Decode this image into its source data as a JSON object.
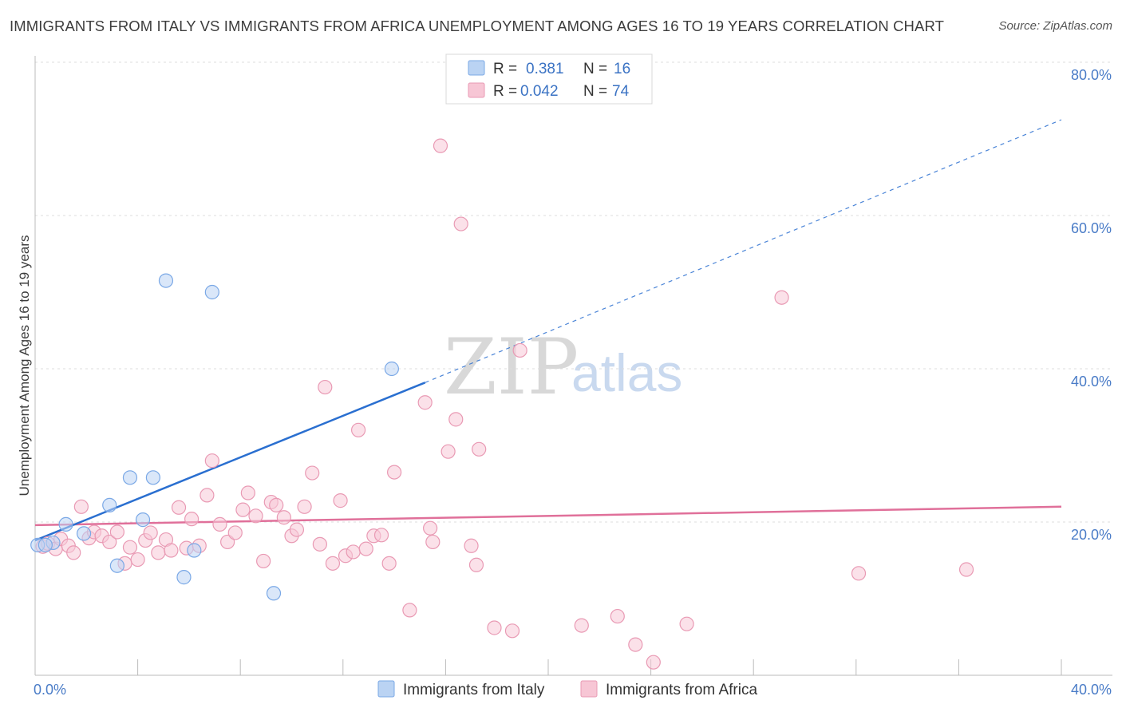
{
  "header": {
    "title": "IMMIGRANTS FROM ITALY VS IMMIGRANTS FROM AFRICA UNEMPLOYMENT AMONG AGES 16 TO 19 YEARS CORRELATION CHART",
    "source": "Source: ZipAtlas.com"
  },
  "watermark": {
    "zip": "ZIP",
    "atlas": "atlas"
  },
  "legend": {
    "rows": [
      {
        "r_label": "R =",
        "r_value": "0.381",
        "n_label": "N =",
        "n_value": "16",
        "color": "#a9c8f0"
      },
      {
        "r_label": "R =",
        "r_value": "0.042",
        "n_label": "N =",
        "n_value": "74",
        "color": "#f5b8cb"
      }
    ]
  },
  "chart_data": {
    "type": "scatter",
    "title": "IMMIGRANTS FROM ITALY VS IMMIGRANTS FROM AFRICA UNEMPLOYMENT AMONG AGES 16 TO 19 YEARS CORRELATION CHART",
    "xlabel": "",
    "ylabel": "Unemployment Among Ages 16 to 19 years",
    "xlim": [
      0,
      40
    ],
    "ylim": [
      0,
      80
    ],
    "x_tick_labels": [
      "0.0%",
      "40.0%"
    ],
    "y_ticks": [
      20,
      40,
      60,
      80
    ],
    "y_tick_labels": [
      "20.0%",
      "40.0%",
      "60.0%",
      "80.0%"
    ],
    "grid": true,
    "legend_position": "top-center",
    "series": [
      {
        "name": "Immigrants from Italy",
        "color": "#7aa8e6",
        "fill": "#bcd4f4",
        "line_color": "#2a6fd0",
        "trend": {
          "x_start": 0,
          "y_start": 17.6,
          "x_solid_end": 15.2,
          "y_solid_end": 38.2,
          "x_dash_end": 40,
          "y_dash_end": 72.5
        },
        "points": [
          [
            0.1,
            17.0
          ],
          [
            0.7,
            17.3
          ],
          [
            1.2,
            19.7
          ],
          [
            1.9,
            18.5
          ],
          [
            2.9,
            22.2
          ],
          [
            3.2,
            14.3
          ],
          [
            3.7,
            25.8
          ],
          [
            4.2,
            20.3
          ],
          [
            4.6,
            25.8
          ],
          [
            5.1,
            51.5
          ],
          [
            5.8,
            12.8
          ],
          [
            6.2,
            16.3
          ],
          [
            6.9,
            50.0
          ],
          [
            9.3,
            10.7
          ],
          [
            13.9,
            40.0
          ],
          [
            0.4,
            17.0
          ]
        ]
      },
      {
        "name": "Immigrants from Africa",
        "color": "#e99ab4",
        "fill": "#f7c9d7",
        "line_color": "#e0709a",
        "trend": {
          "x_start": 0,
          "y_start": 19.6,
          "x_end": 40,
          "y_end": 22.0
        },
        "points": [
          [
            0.3,
            16.8
          ],
          [
            0.5,
            17.2
          ],
          [
            0.8,
            16.5
          ],
          [
            1.0,
            17.8
          ],
          [
            1.3,
            16.9
          ],
          [
            1.5,
            16.0
          ],
          [
            1.8,
            22.0
          ],
          [
            2.1,
            17.9
          ],
          [
            2.3,
            18.7
          ],
          [
            2.6,
            18.2
          ],
          [
            2.9,
            17.4
          ],
          [
            3.2,
            18.7
          ],
          [
            3.5,
            14.6
          ],
          [
            3.7,
            16.7
          ],
          [
            4.0,
            15.1
          ],
          [
            4.3,
            17.6
          ],
          [
            4.5,
            18.6
          ],
          [
            4.8,
            16.0
          ],
          [
            5.1,
            17.7
          ],
          [
            5.3,
            16.3
          ],
          [
            5.6,
            21.9
          ],
          [
            5.9,
            16.6
          ],
          [
            6.1,
            20.4
          ],
          [
            6.4,
            16.9
          ],
          [
            6.7,
            23.5
          ],
          [
            6.9,
            28.0
          ],
          [
            7.2,
            19.7
          ],
          [
            7.5,
            17.4
          ],
          [
            7.8,
            18.6
          ],
          [
            8.1,
            21.6
          ],
          [
            8.3,
            23.8
          ],
          [
            8.6,
            20.8
          ],
          [
            8.9,
            14.9
          ],
          [
            9.2,
            22.6
          ],
          [
            9.4,
            22.2
          ],
          [
            9.7,
            20.6
          ],
          [
            10.0,
            18.2
          ],
          [
            10.2,
            19.0
          ],
          [
            10.5,
            22.0
          ],
          [
            10.8,
            26.4
          ],
          [
            11.1,
            17.1
          ],
          [
            11.3,
            37.6
          ],
          [
            11.6,
            14.6
          ],
          [
            11.9,
            22.8
          ],
          [
            12.1,
            15.6
          ],
          [
            12.4,
            16.1
          ],
          [
            12.6,
            32.0
          ],
          [
            12.9,
            16.5
          ],
          [
            13.2,
            18.2
          ],
          [
            13.5,
            18.3
          ],
          [
            13.8,
            14.6
          ],
          [
            14.0,
            26.5
          ],
          [
            14.6,
            8.5
          ],
          [
            15.2,
            35.6
          ],
          [
            15.4,
            19.2
          ],
          [
            15.5,
            17.4
          ],
          [
            15.8,
            69.1
          ],
          [
            16.1,
            29.2
          ],
          [
            16.4,
            33.4
          ],
          [
            16.6,
            58.9
          ],
          [
            17.0,
            16.9
          ],
          [
            17.2,
            14.4
          ],
          [
            17.3,
            29.5
          ],
          [
            17.9,
            6.2
          ],
          [
            18.6,
            5.8
          ],
          [
            18.9,
            42.4
          ],
          [
            21.3,
            6.5
          ],
          [
            22.7,
            7.7
          ],
          [
            23.4,
            4.0
          ],
          [
            24.1,
            1.7
          ],
          [
            25.4,
            6.7
          ],
          [
            29.1,
            49.3
          ],
          [
            32.1,
            13.3
          ],
          [
            36.3,
            13.8
          ]
        ]
      }
    ]
  }
}
